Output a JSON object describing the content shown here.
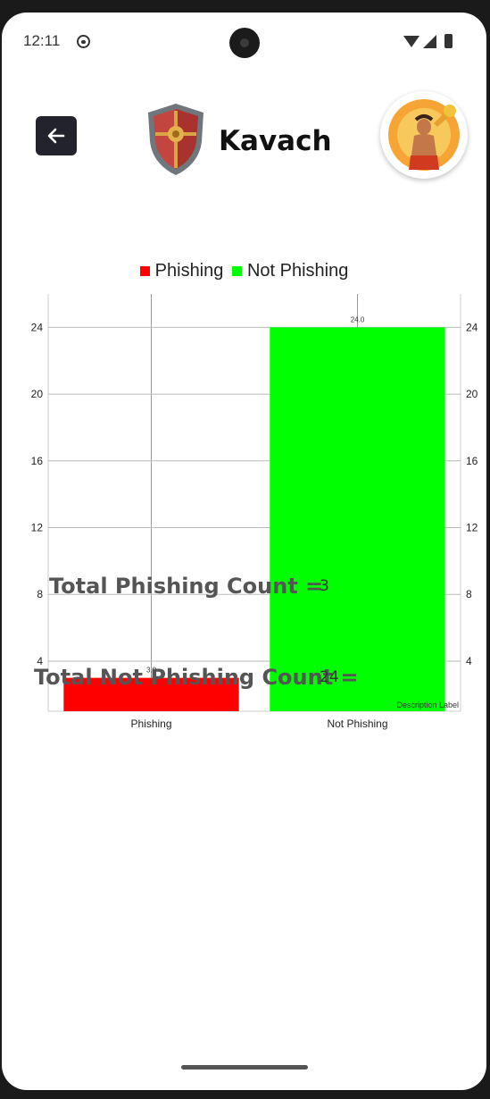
{
  "status_bar": {
    "time": "12:11"
  },
  "header": {
    "title": "Kavach",
    "back_icon": "arrow-left-icon",
    "logo_icon": "shield-icon",
    "avatar": "avatar"
  },
  "chart_data": {
    "type": "bar",
    "categories": [
      "Phishing",
      "Not Phishing"
    ],
    "values": [
      3,
      24
    ],
    "value_labels": [
      "3.0",
      "24.0"
    ],
    "colors": [
      "#ff0000",
      "#00ff00"
    ],
    "legend": [
      {
        "label": "Phishing",
        "color": "#ff0000"
      },
      {
        "label": "Not Phishing",
        "color": "#00ff00"
      }
    ],
    "legend_position": "top-center",
    "yticks": [
      4,
      8,
      12,
      16,
      20,
      24
    ],
    "ylim": [
      1,
      26
    ],
    "grid": true,
    "description": "Description Label"
  },
  "stats": {
    "phishing_label": "Total Phishing Count =",
    "phishing_value": "3",
    "not_phishing_label": "Total Not Phishing Count =",
    "not_phishing_value": "24"
  }
}
